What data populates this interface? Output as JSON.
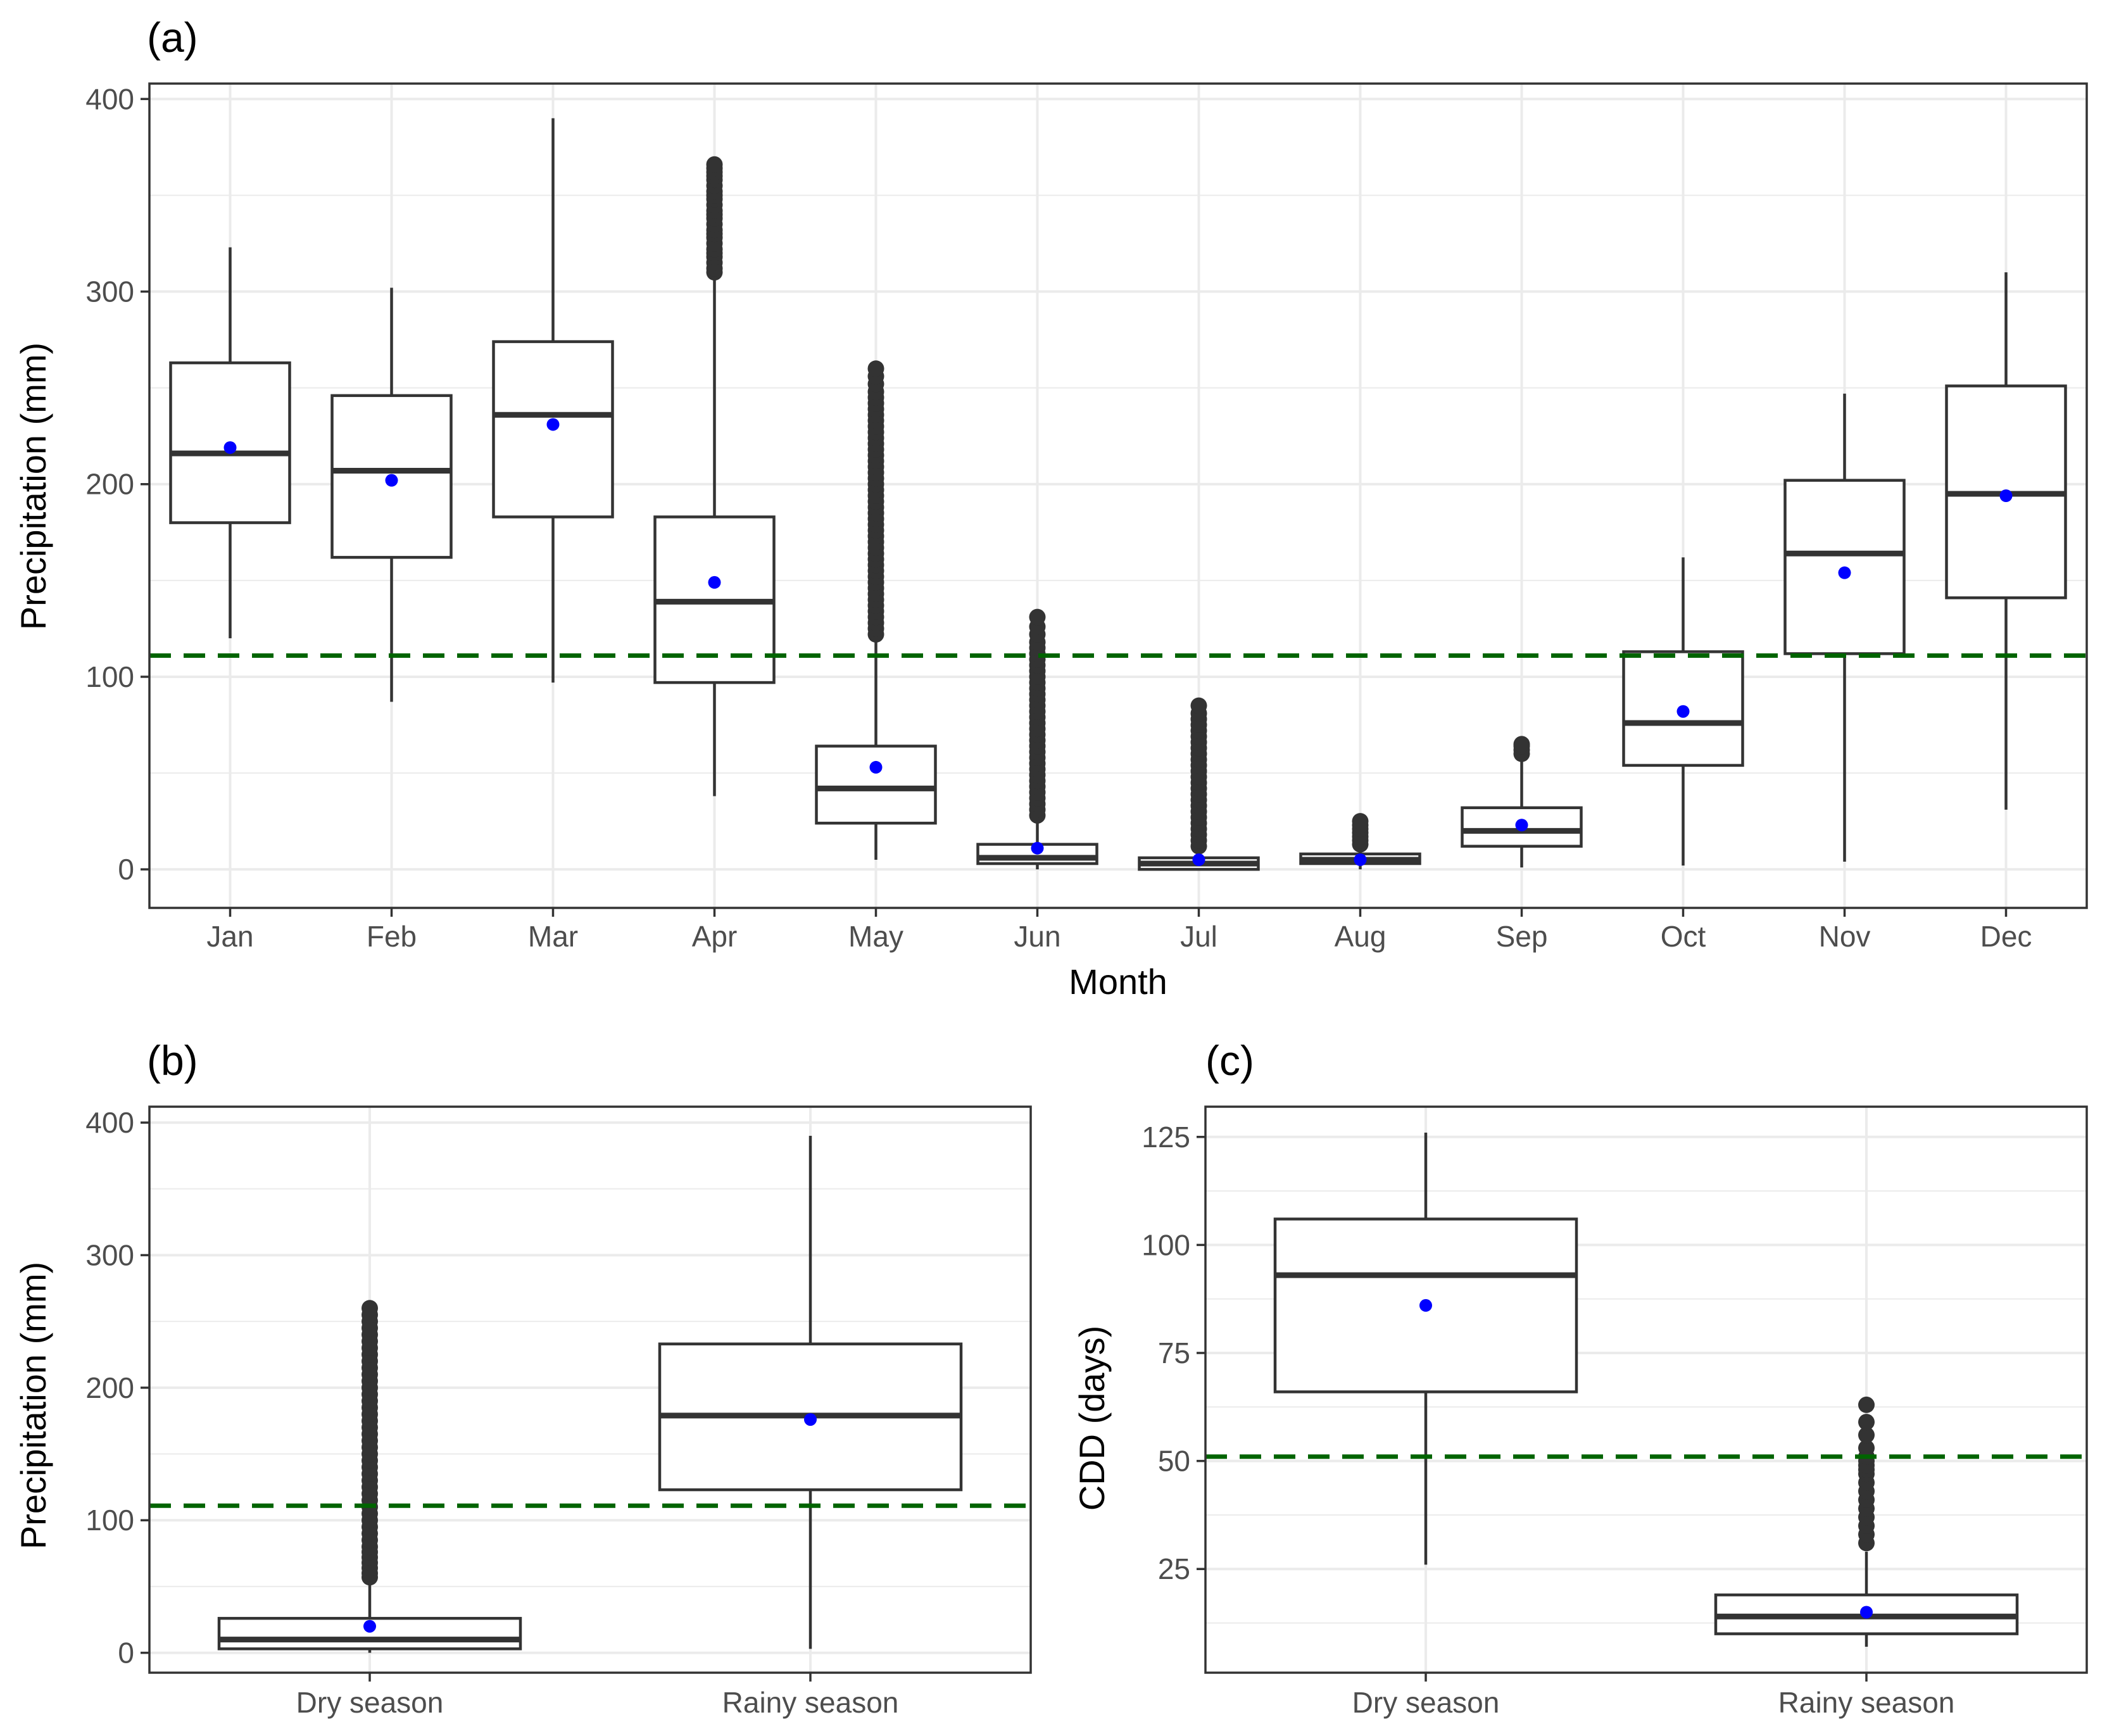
{
  "chart_data": [
    {
      "panel": "a",
      "type": "box",
      "tag": "(a)",
      "xlabel": "Month",
      "ylabel": "Precipitation (mm)",
      "ylim": [
        -20,
        408
      ],
      "yticks": [
        0,
        100,
        200,
        300,
        400
      ],
      "categories": [
        "Jan",
        "Feb",
        "Mar",
        "Apr",
        "May",
        "Jun",
        "Jul",
        "Aug",
        "Sep",
        "Oct",
        "Nov",
        "Dec"
      ],
      "boxes": [
        {
          "min": 120,
          "q1": 180,
          "median": 216,
          "q3": 263,
          "max": 323,
          "mean": 219,
          "outliers": []
        },
        {
          "min": 87,
          "q1": 162,
          "median": 207,
          "q3": 246,
          "max": 302,
          "mean": 202,
          "outliers": []
        },
        {
          "min": 97,
          "q1": 183,
          "median": 236,
          "q3": 274,
          "max": 390,
          "mean": 231,
          "outliers": []
        },
        {
          "min": 38,
          "q1": 97,
          "median": 139,
          "q3": 183,
          "max": 308,
          "mean": 149,
          "outliers": [
            310,
            312,
            315,
            318,
            320,
            322,
            325,
            328,
            330,
            332,
            335,
            338,
            340,
            342,
            345,
            348,
            350,
            352,
            355,
            358,
            360,
            362,
            364,
            366
          ]
        },
        {
          "min": 5,
          "q1": 24,
          "median": 42,
          "q3": 64,
          "max": 120,
          "mean": 53,
          "outliers": [
            122,
            125,
            128,
            131,
            134,
            137,
            140,
            143,
            146,
            149,
            152,
            155,
            158,
            161,
            164,
            167,
            170,
            173,
            176,
            179,
            182,
            185,
            188,
            191,
            194,
            197,
            200,
            203,
            206,
            209,
            212,
            215,
            218,
            221,
            224,
            227,
            230,
            233,
            236,
            239,
            242,
            245,
            248,
            252,
            256,
            260
          ]
        },
        {
          "min": 0,
          "q1": 3,
          "median": 6,
          "q3": 13,
          "max": 26,
          "mean": 11,
          "outliers": [
            28,
            31,
            34,
            37,
            40,
            43,
            46,
            49,
            52,
            55,
            58,
            61,
            64,
            67,
            70,
            73,
            76,
            79,
            82,
            85,
            88,
            91,
            94,
            97,
            100,
            103,
            106,
            109,
            112,
            115,
            118,
            122,
            126,
            131
          ]
        },
        {
          "min": 0,
          "q1": 0,
          "median": 3,
          "q3": 6,
          "max": 10,
          "mean": 5,
          "outliers": [
            12,
            15,
            18,
            21,
            24,
            27,
            30,
            33,
            36,
            39,
            42,
            45,
            48,
            51,
            54,
            57,
            60,
            63,
            66,
            69,
            72,
            75,
            78,
            81,
            85
          ]
        },
        {
          "min": 0,
          "q1": 3,
          "median": 5,
          "q3": 8,
          "max": 12,
          "mean": 5,
          "outliers": [
            13,
            15,
            17,
            19,
            21,
            23,
            25
          ]
        },
        {
          "min": 1,
          "q1": 12,
          "median": 20,
          "q3": 32,
          "max": 59,
          "mean": 23,
          "outliers": [
            60,
            62,
            64,
            65
          ]
        },
        {
          "min": 2,
          "q1": 54,
          "median": 76,
          "q3": 113,
          "max": 162,
          "mean": 82,
          "outliers": []
        },
        {
          "min": 4,
          "q1": 112,
          "median": 164,
          "q3": 202,
          "max": 247,
          "mean": 154,
          "outliers": []
        },
        {
          "min": 31,
          "q1": 141,
          "median": 195,
          "q3": 251,
          "max": 310,
          "mean": 194,
          "outliers": []
        }
      ],
      "reference_line": 111,
      "colors": {
        "box": "#333333",
        "mean": "#0000ff",
        "reference": "#006400",
        "grid": "#ebebeb"
      }
    },
    {
      "panel": "b",
      "type": "box",
      "tag": "(b)",
      "xlabel": "",
      "ylabel": "Precipitation (mm)",
      "ylim": [
        -15,
        412
      ],
      "yticks": [
        0,
        100,
        200,
        300,
        400
      ],
      "categories": [
        "Dry season",
        "Rainy season"
      ],
      "boxes": [
        {
          "min": 0,
          "q1": 3,
          "median": 10,
          "q3": 26,
          "max": 55,
          "mean": 20,
          "outliers": [
            57,
            60,
            64,
            68,
            72,
            76,
            80,
            85,
            90,
            95,
            100,
            105,
            110,
            115,
            120,
            125,
            130,
            135,
            140,
            145,
            150,
            155,
            160,
            165,
            170,
            175,
            180,
            185,
            190,
            195,
            200,
            205,
            210,
            215,
            220,
            225,
            230,
            235,
            240,
            245,
            250,
            255,
            260
          ]
        },
        {
          "min": 3,
          "q1": 123,
          "median": 179,
          "q3": 233,
          "max": 390,
          "mean": 176,
          "outliers": []
        }
      ],
      "reference_line": 111,
      "colors": {
        "box": "#333333",
        "mean": "#0000ff",
        "reference": "#006400",
        "grid": "#ebebeb"
      }
    },
    {
      "panel": "c",
      "type": "box",
      "tag": "(c)",
      "xlabel": "",
      "ylabel": "CDD (days)",
      "ylim": [
        1,
        132
      ],
      "yticks": [
        25,
        50,
        75,
        100,
        125
      ],
      "categories": [
        "Dry season",
        "Rainy season"
      ],
      "boxes": [
        {
          "min": 26,
          "q1": 66,
          "median": 93,
          "q3": 106,
          "max": 126,
          "mean": 86,
          "outliers": []
        },
        {
          "min": 7,
          "q1": 10,
          "median": 14,
          "q3": 19,
          "max": 29,
          "mean": 15,
          "outliers": [
            31,
            33,
            35,
            37,
            39,
            41,
            43,
            45,
            47,
            48,
            49,
            50,
            51,
            53,
            56,
            59,
            63
          ]
        }
      ],
      "reference_line": 51,
      "colors": {
        "box": "#333333",
        "mean": "#0000ff",
        "reference": "#006400",
        "grid": "#ebebeb"
      }
    }
  ]
}
